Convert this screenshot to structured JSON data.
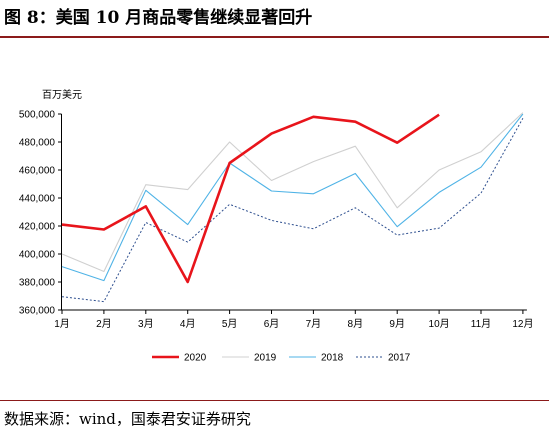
{
  "figure": {
    "title": "图 8：美国 10 月商品零售继续显著回升",
    "source": "数据来源：wind，国泰君安证券研究"
  },
  "chart_data": {
    "type": "line",
    "unit_label": "百万美元",
    "categories": [
      "1月",
      "2月",
      "3月",
      "4月",
      "5月",
      "6月",
      "7月",
      "8月",
      "9月",
      "10月",
      "11月",
      "12月"
    ],
    "ylim": [
      360000,
      500000
    ],
    "yticks": [
      "360,000",
      "380,000",
      "400,000",
      "420,000",
      "440,000",
      "460,000",
      "480,000",
      "500,000"
    ],
    "grid": false,
    "legend_position": "bottom",
    "series": [
      {
        "name": "2020",
        "color": "#e8141b",
        "style": "solid-thick",
        "values": [
          421000,
          417500,
          434000,
          380000,
          465000,
          486000,
          498000,
          494500,
          479500,
          499500,
          null,
          null
        ]
      },
      {
        "name": "2019",
        "color": "#d0d0d0",
        "style": "solid",
        "values": [
          400000,
          387500,
          449500,
          446000,
          480000,
          452500,
          466000,
          477000,
          433000,
          460000,
          473000,
          501000
        ]
      },
      {
        "name": "2018",
        "color": "#4fb3e6",
        "style": "solid",
        "values": [
          391000,
          381000,
          445500,
          421000,
          465000,
          445000,
          443000,
          457500,
          419500,
          444000,
          462000,
          500000
        ]
      },
      {
        "name": "2017",
        "color": "#2e4f8f",
        "style": "dotted",
        "values": [
          369500,
          366000,
          422500,
          408500,
          435500,
          424000,
          418000,
          433000,
          413500,
          418500,
          443500,
          497000
        ]
      }
    ]
  }
}
